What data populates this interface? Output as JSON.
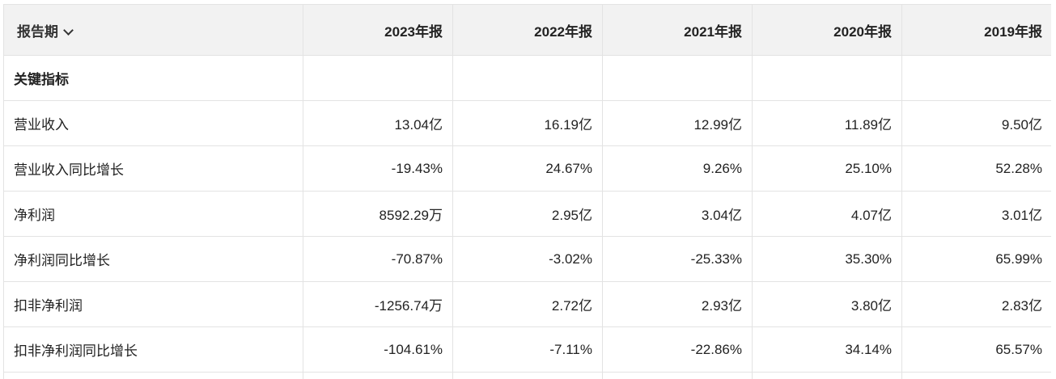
{
  "table": {
    "period_header": "报告期",
    "columns": [
      "2023年报",
      "2022年报",
      "2021年报",
      "2020年报",
      "2019年报"
    ],
    "section_title": "关键指标",
    "rows": [
      {
        "label": "营业收入",
        "values": [
          "13.04亿",
          "16.19亿",
          "12.99亿",
          "11.89亿",
          "9.50亿"
        ]
      },
      {
        "label": "营业收入同比增长",
        "values": [
          "-19.43%",
          "24.67%",
          "9.26%",
          "25.10%",
          "52.28%"
        ]
      },
      {
        "label": "净利润",
        "values": [
          "8592.29万",
          "2.95亿",
          "3.04亿",
          "4.07亿",
          "3.01亿"
        ]
      },
      {
        "label": "净利润同比增长",
        "values": [
          "-70.87%",
          "-3.02%",
          "-25.33%",
          "35.30%",
          "65.99%"
        ]
      },
      {
        "label": "扣非净利润",
        "values": [
          "-1256.74万",
          "2.72亿",
          "2.93亿",
          "3.80亿",
          "2.83亿"
        ]
      },
      {
        "label": "扣非净利润同比增长",
        "values": [
          "-104.61%",
          "-7.11%",
          "-22.86%",
          "34.14%",
          "65.57%"
        ]
      }
    ]
  }
}
